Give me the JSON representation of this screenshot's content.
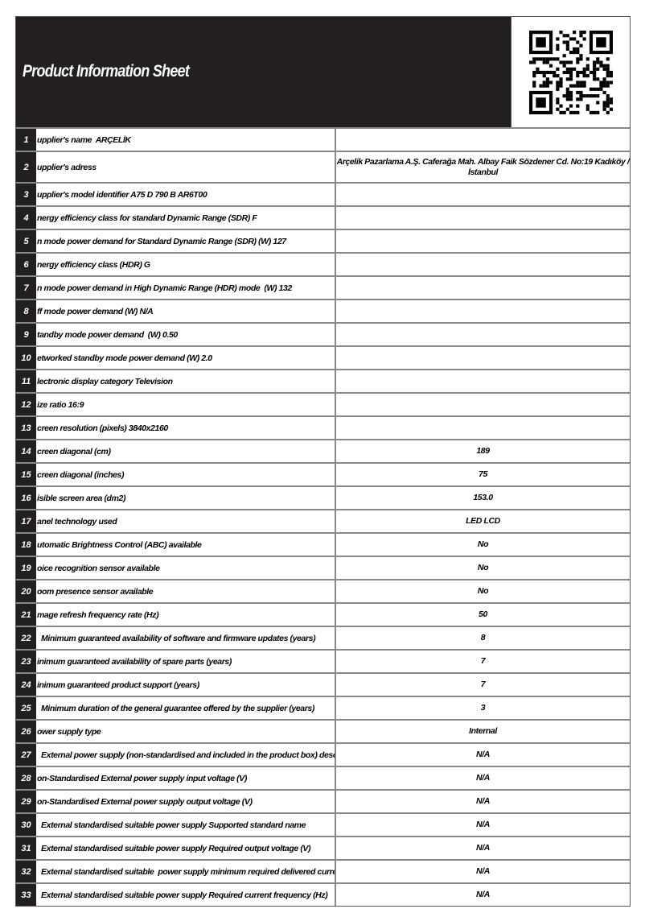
{
  "header": {
    "title": "Product Information Sheet"
  },
  "rows": [
    {
      "num": "1",
      "label": "upplier's name  ARÇELİK",
      "value": ""
    },
    {
      "num": "2",
      "label": "upplier's adress",
      "value": "Arçelik Pazarlama A.Ş. Caferağa Mah. Albay Faik Sözdener Cd. No:19 Kadıköy / İstanbul"
    },
    {
      "num": "3",
      "label": "upplier's model identifier A75 D 790 B AR6T00",
      "value": ""
    },
    {
      "num": "4",
      "label": "nergy efficiency class for standard Dynamic Range (SDR) F",
      "value": ""
    },
    {
      "num": "5",
      "label": "n mode power demand for Standard Dynamic Range (SDR) (W) 127",
      "value": ""
    },
    {
      "num": "6",
      "label": "nergy efficiency class (HDR) G",
      "value": ""
    },
    {
      "num": "7",
      "label": "n mode power demand in High Dynamic Range (HDR) mode  (W) 132",
      "value": ""
    },
    {
      "num": "8",
      "label": "ff mode power demand (W) N/A",
      "value": ""
    },
    {
      "num": "9",
      "label": "tandby mode power demand  (W) 0.50",
      "value": ""
    },
    {
      "num": "10",
      "label": "etworked standby mode power demand (W) 2.0",
      "value": ""
    },
    {
      "num": "11",
      "label": "lectronic display category Television",
      "value": ""
    },
    {
      "num": "12",
      "label": "ize ratio 16:9",
      "value": ""
    },
    {
      "num": "13",
      "label": "creen resolution (pixels) 3840x2160",
      "value": ""
    },
    {
      "num": "14",
      "label": "creen diagonal (cm)",
      "value": "189"
    },
    {
      "num": "15",
      "label": "creen diagonal (inches)",
      "value": "75"
    },
    {
      "num": "16",
      "label": "isible screen area (dm2)",
      "value": "153.0"
    },
    {
      "num": "17",
      "label": "anel technology used",
      "value": "LED LCD"
    },
    {
      "num": "18",
      "label": "utomatic Brightness Control (ABC) available",
      "value": "No"
    },
    {
      "num": "19",
      "label": "oice recognition sensor available",
      "value": "No"
    },
    {
      "num": "20",
      "label": "oom presence sensor available",
      "value": "No"
    },
    {
      "num": "21",
      "label": "mage refresh frequency rate (Hz)",
      "value": "50"
    },
    {
      "num": "22",
      "label": "  Minimum guaranteed availability of software and firmware updates (years)",
      "value": "8"
    },
    {
      "num": "23",
      "label": "inimum guaranteed availability of spare parts (years)",
      "value": "7"
    },
    {
      "num": "24",
      "label": "inimum guaranteed product support (years)",
      "value": "7"
    },
    {
      "num": "25",
      "label": "  Minimum duration of the general guarantee offered by the supplier (years)",
      "value": "3"
    },
    {
      "num": "26",
      "label": "ower supply type",
      "value": "Internal"
    },
    {
      "num": "27",
      "label": "  External power supply (non-standardised and included in the product box) description",
      "value": "N/A"
    },
    {
      "num": "28",
      "label": "on-Standardised External power supply input voltage (V)",
      "value": "N/A"
    },
    {
      "num": "29",
      "label": "on-Standardised External power supply output voltage (V)",
      "value": "N/A"
    },
    {
      "num": "30",
      "label": "  External standardised suitable power supply Supported standard name",
      "value": "N/A"
    },
    {
      "num": "31",
      "label": "  External standardised suitable power supply Required output voltage (V)",
      "value": "N/A"
    },
    {
      "num": "32",
      "label": "  External standardised suitable  power supply minimum required delivered current  (A)",
      "value": "N/A"
    },
    {
      "num": "33",
      "label": "  External standardised suitable power supply Required current frequency (Hz)",
      "value": "N/A"
    }
  ]
}
